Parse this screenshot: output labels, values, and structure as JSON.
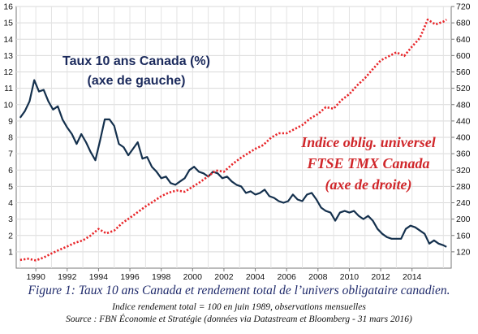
{
  "chart_data": {
    "type": "line",
    "annotations": {
      "left_series_label": [
        "Taux 10 ans Canada (%)",
        "(axe de gauche)"
      ],
      "right_series_label": [
        "Indice oblig. universel",
        "FTSE TMX Canada",
        "(axe de droite)"
      ]
    },
    "x_ticks": [
      1990,
      1992,
      1994,
      1996,
      1998,
      2000,
      2002,
      2004,
      2006,
      2008,
      2010,
      2012,
      2014
    ],
    "xlim": [
      1988.75,
      2016.5
    ],
    "left_axis": {
      "ylim": [
        0,
        16
      ],
      "ticks": [
        1,
        2,
        3,
        4,
        5,
        6,
        7,
        8,
        9,
        10,
        11,
        12,
        13,
        14,
        15,
        16
      ]
    },
    "right_axis": {
      "ylim": [
        80,
        720
      ],
      "ticks": [
        120,
        160,
        200,
        240,
        280,
        320,
        360,
        400,
        440,
        480,
        520,
        560,
        600,
        640,
        680,
        720
      ]
    },
    "grid": true,
    "colors": {
      "rate_line": "#14304d",
      "index_line": "#e8262a",
      "annotation_red": "#d0262a",
      "annotation_navy": "#1b2a5c"
    },
    "series": [
      {
        "axis": "left",
        "style": "solid",
        "x": [
          1989.0,
          1989.3,
          1989.6,
          1989.9,
          1990.2,
          1990.5,
          1990.8,
          1991.1,
          1991.4,
          1991.7,
          1992.0,
          1992.3,
          1992.6,
          1992.9,
          1993.2,
          1993.5,
          1993.8,
          1994.1,
          1994.4,
          1994.7,
          1995.0,
          1995.3,
          1995.6,
          1995.9,
          1996.2,
          1996.5,
          1996.8,
          1997.1,
          1997.4,
          1997.7,
          1998.0,
          1998.3,
          1998.6,
          1998.9,
          1999.2,
          1999.5,
          1999.8,
          2000.1,
          2000.4,
          2000.7,
          2001.0,
          2001.3,
          2001.6,
          2001.9,
          2002.2,
          2002.5,
          2002.8,
          2003.1,
          2003.4,
          2003.7,
          2004.0,
          2004.3,
          2004.6,
          2004.9,
          2005.2,
          2005.5,
          2005.8,
          2006.1,
          2006.4,
          2006.7,
          2007.0,
          2007.3,
          2007.6,
          2007.9,
          2008.2,
          2008.5,
          2008.8,
          2009.1,
          2009.4,
          2009.7,
          2010.0,
          2010.3,
          2010.6,
          2010.9,
          2011.2,
          2011.5,
          2011.8,
          2012.1,
          2012.4,
          2012.7,
          2013.0,
          2013.3,
          2013.6,
          2013.9,
          2014.2,
          2014.5,
          2014.8,
          2015.1,
          2015.4,
          2015.7,
          2016.0,
          2016.2
        ],
        "values": [
          9.2,
          9.6,
          10.2,
          11.5,
          10.8,
          10.9,
          10.2,
          9.7,
          9.9,
          9.1,
          8.6,
          8.2,
          7.6,
          8.2,
          7.7,
          7.1,
          6.6,
          7.8,
          9.1,
          9.1,
          8.7,
          7.6,
          7.4,
          6.9,
          7.3,
          7.7,
          6.7,
          6.8,
          6.2,
          5.9,
          5.5,
          5.6,
          5.2,
          5.1,
          5.3,
          5.5,
          6.0,
          6.2,
          5.9,
          5.8,
          5.6,
          5.9,
          5.8,
          5.5,
          5.6,
          5.3,
          5.1,
          5.0,
          4.6,
          4.7,
          4.5,
          4.6,
          4.8,
          4.4,
          4.3,
          4.1,
          4.0,
          4.1,
          4.5,
          4.2,
          4.1,
          4.5,
          4.6,
          4.2,
          3.7,
          3.5,
          3.4,
          2.9,
          3.4,
          3.5,
          3.4,
          3.5,
          3.2,
          3.0,
          3.2,
          2.9,
          2.4,
          2.1,
          1.9,
          1.8,
          1.8,
          1.8,
          2.4,
          2.6,
          2.5,
          2.3,
          2.1,
          1.5,
          1.7,
          1.5,
          1.4,
          1.3
        ]
      },
      {
        "axis": "right",
        "style": "dotted",
        "x": [
          1989.0,
          1989.5,
          1990.0,
          1990.5,
          1991.0,
          1991.5,
          1992.0,
          1992.5,
          1993.0,
          1993.5,
          1994.0,
          1994.5,
          1995.0,
          1995.5,
          1996.0,
          1996.5,
          1997.0,
          1997.5,
          1998.0,
          1998.5,
          1999.0,
          1999.5,
          2000.0,
          2000.5,
          2001.0,
          2001.5,
          2002.0,
          2002.5,
          2003.0,
          2003.5,
          2004.0,
          2004.5,
          2005.0,
          2005.5,
          2006.0,
          2006.5,
          2007.0,
          2007.5,
          2008.0,
          2008.5,
          2009.0,
          2009.5,
          2010.0,
          2010.5,
          2011.0,
          2011.5,
          2012.0,
          2012.5,
          2013.0,
          2013.5,
          2014.0,
          2014.5,
          2015.0,
          2015.5,
          2016.0,
          2016.2
        ],
        "values": [
          100,
          103,
          99,
          106,
          116,
          125,
          133,
          142,
          148,
          160,
          176,
          165,
          172,
          190,
          203,
          217,
          231,
          243,
          256,
          265,
          270,
          267,
          279,
          291,
          305,
          319,
          316,
          333,
          348,
          360,
          372,
          381,
          399,
          410,
          410,
          420,
          430,
          446,
          457,
          474,
          470,
          491,
          506,
          527,
          545,
          567,
          588,
          598,
          608,
          599,
          622,
          643,
          688,
          676,
          683,
          688
        ]
      }
    ],
    "figure_caption": "Figure 1: Taux 10 ans Canada et rendement total de l’univers obligataire canadien.",
    "figure_note": "Indice rendement total = 100 en juin 1989, observations mensuelles",
    "figure_source": "Source : FBN Économie et Stratégie (données via Datastream et Bloomberg - 31 mars 2016)"
  }
}
